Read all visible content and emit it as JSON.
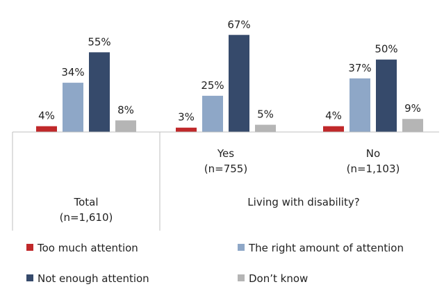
{
  "chart_data": {
    "type": "bar",
    "groups": [
      {
        "label_line1": "Total",
        "label_line2": "(n=1,610)",
        "values": [
          4,
          34,
          55,
          8
        ]
      },
      {
        "label_line1": "Yes",
        "label_line2": "(n=755)",
        "values": [
          3,
          25,
          67,
          5
        ]
      },
      {
        "label_line1": "No",
        "label_line2": "(n=1,103)",
        "values": [
          4,
          37,
          50,
          9
        ]
      }
    ],
    "group_header": "Living with disability?",
    "series": [
      {
        "name": "Too much attention",
        "color": "#c0282a"
      },
      {
        "name": "The right amount of attention",
        "color": "#8ea7c7"
      },
      {
        "name": "Not enough attention",
        "color": "#364a6b"
      },
      {
        "name": "Don’t know",
        "color": "#b5b5b5"
      }
    ],
    "value_suffix": "%",
    "ylim": [
      0,
      70
    ],
    "grid": false,
    "legend_position": "bottom"
  }
}
